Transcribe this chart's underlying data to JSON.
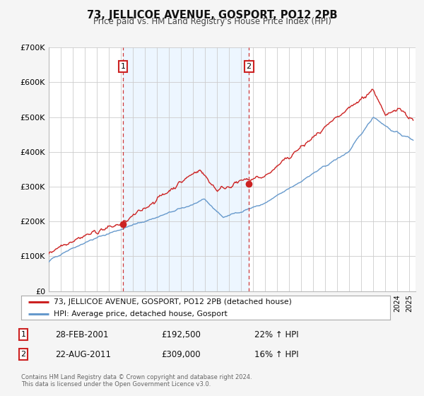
{
  "title": "73, JELLICOE AVENUE, GOSPORT, PO12 2PB",
  "subtitle": "Price paid vs. HM Land Registry's House Price Index (HPI)",
  "background_color": "#f5f5f5",
  "plot_bg_color": "#ffffff",
  "grid_color": "#cccccc",
  "red_line_color": "#cc2222",
  "blue_line_color": "#6699cc",
  "shade_color": "#ddeeff",
  "ylim": [
    0,
    700000
  ],
  "yticks": [
    0,
    100000,
    200000,
    300000,
    400000,
    500000,
    600000,
    700000
  ],
  "ytick_labels": [
    "£0",
    "£100K",
    "£200K",
    "£300K",
    "£400K",
    "£500K",
    "£600K",
    "£700K"
  ],
  "xmin": 1995.0,
  "xmax": 2025.5,
  "marker1_x": 2001.167,
  "marker1_y": 192500,
  "marker1_label": "1",
  "marker1_date": "28-FEB-2001",
  "marker1_price": "£192,500",
  "marker1_hpi": "22% ↑ HPI",
  "marker2_x": 2011.642,
  "marker2_y": 309000,
  "marker2_label": "2",
  "marker2_date": "22-AUG-2011",
  "marker2_price": "£309,000",
  "marker2_hpi": "16% ↑ HPI",
  "legend_line1": "73, JELLICOE AVENUE, GOSPORT, PO12 2PB (detached house)",
  "legend_line2": "HPI: Average price, detached house, Gosport",
  "footer1": "Contains HM Land Registry data © Crown copyright and database right 2024.",
  "footer2": "This data is licensed under the Open Government Licence v3.0."
}
